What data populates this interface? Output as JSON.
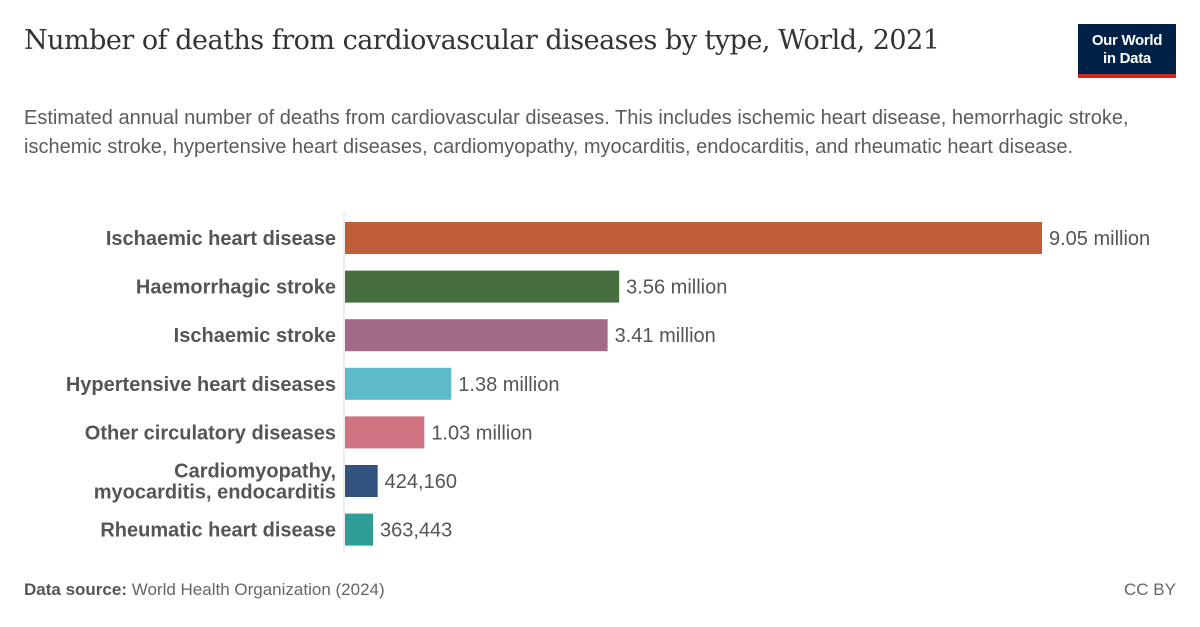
{
  "header": {
    "title": "Number of deaths from cardiovascular diseases by type, World, 2021",
    "subtitle": "Estimated annual number of deaths from cardiovascular diseases. This includes ischemic heart disease, hemorrhagic stroke, ischemic stroke, hypertensive heart diseases, cardiomyopathy, myocarditis, endocarditis, and rheumatic heart disease.",
    "logo": "Our World in Data"
  },
  "footer": {
    "source_label": "Data source:",
    "source": "World Health Organization (2024)",
    "license": "CC BY"
  },
  "chart_data": {
    "type": "bar",
    "orientation": "horizontal",
    "title": "Number of deaths from cardiovascular diseases by type, World, 2021",
    "categories": [
      [
        "Ischaemic heart disease"
      ],
      [
        "Haemorrhagic stroke"
      ],
      [
        "Ischaemic stroke"
      ],
      [
        "Hypertensive heart diseases"
      ],
      [
        "Other circulatory diseases"
      ],
      [
        "Cardiomyopathy,",
        "myocarditis, endocarditis"
      ],
      [
        "Rheumatic heart disease"
      ]
    ],
    "values": [
      9050000,
      3560000,
      3410000,
      1380000,
      1030000,
      424160,
      363443
    ],
    "value_labels": [
      "9.05 million",
      "3.56 million",
      "3.41 million",
      "1.38 million",
      "1.03 million",
      "424,160",
      "363,443"
    ],
    "colors": [
      "#c15e3a",
      "#466e3f",
      "#a26a87",
      "#5dbbc9",
      "#cf7282",
      "#34527f",
      "#2f9e97"
    ],
    "xlim": [
      0,
      9050000
    ]
  }
}
